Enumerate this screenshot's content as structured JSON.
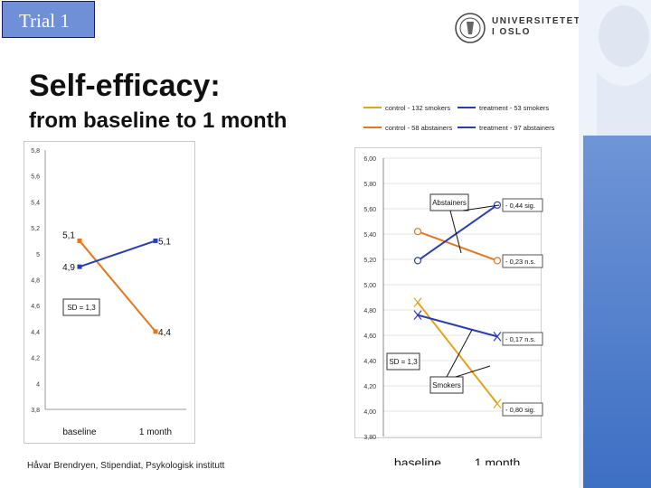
{
  "slide": {
    "trial_label": "Trial 1",
    "title": "Self-efficacy:",
    "subtitle": "from baseline to 1 month",
    "footer": "Håvar Brendryen, Stipendiat, Psykologisk institutt",
    "logo_line1": "UNIVERSITETET",
    "logo_line2": "I OSLO"
  },
  "chart_data": [
    {
      "type": "line",
      "categories": [
        "baseline",
        "1 month"
      ],
      "ylim": [
        3.8,
        5.8
      ],
      "yticks": [
        "5,8",
        "5,6",
        "5,4",
        "5,2",
        "5",
        "4,8",
        "4,6",
        "4,4",
        "4,2",
        "4",
        "3,8"
      ],
      "grid": false,
      "series": [
        {
          "values": [
            5.1,
            4.4
          ],
          "color": "#e8751a",
          "labels": [
            "5,1",
            "4,4"
          ]
        },
        {
          "values": [
            4.9,
            5.1
          ],
          "color": "#2a3db8",
          "labels": [
            "4,9",
            "5,1"
          ]
        }
      ],
      "annotations": [
        "SD = 1,3"
      ]
    },
    {
      "type": "line",
      "categories": [
        "baseline",
        "1 month"
      ],
      "ylim": [
        3.8,
        6.0
      ],
      "yticks": [
        "6,00",
        "5,80",
        "5,60",
        "5,40",
        "5,20",
        "5,00",
        "4,80",
        "4,60",
        "4,40",
        "4,20",
        "4,00",
        "3,80"
      ],
      "legend": [
        "control - 132 smokers",
        "treatment - 53 smokers",
        "control - 58 abstainers",
        "treatment - 97 abstainers"
      ],
      "series": [
        {
          "name": "control - 132 smokers",
          "values": [
            4.86,
            4.06
          ],
          "color": "#e8a21a"
        },
        {
          "name": "treatment - 53 smokers",
          "values": [
            4.76,
            4.59
          ],
          "color": "#2a3db8"
        },
        {
          "name": "control - 58 abstainers",
          "values": [
            5.42,
            5.19
          ],
          "color": "#e8751a"
        },
        {
          "name": "treatment - 97 abstainers",
          "values": [
            5.19,
            5.63
          ],
          "color": "#2a3db8"
        }
      ],
      "annotations": [
        "Abstainers",
        "Smokers",
        "SD = 1,3",
        "- 0,44 sig.",
        "- 0,23 n.s.",
        "- 0,17 n.s.",
        "- 0,80 sig."
      ]
    }
  ]
}
